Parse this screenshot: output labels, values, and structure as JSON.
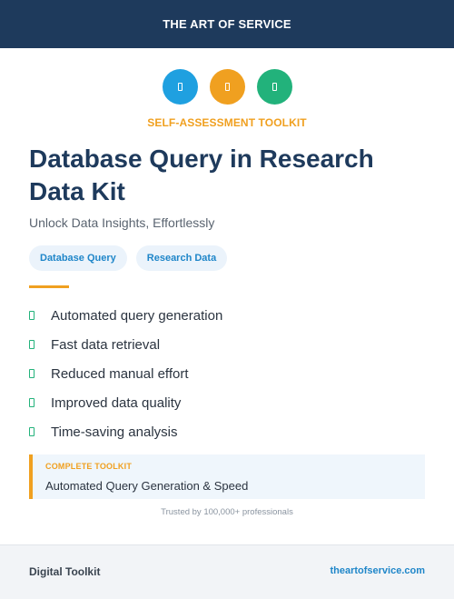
{
  "header": {
    "brand": "THE ART OF SERVICE"
  },
  "icons": [
    {
      "name": "square-icon",
      "color": "#1fa0e0"
    },
    {
      "name": "square-icon",
      "color": "#f0a020"
    },
    {
      "name": "square-icon",
      "color": "#22b27b"
    }
  ],
  "kicker": "SELF-ASSESSMENT TOOLKIT",
  "title": "Database Query in Research Data Kit",
  "subtitle": "Unlock Data Insights, Effortlessly",
  "tags": [
    "Database Query",
    "Research Data"
  ],
  "features": [
    "Automated query generation",
    "Fast data retrieval",
    "Reduced manual effort",
    "Improved data quality",
    "Time-saving analysis"
  ],
  "callout": {
    "label": "COMPLETE TOOLKIT",
    "value": "Automated Query Generation & Speed"
  },
  "trust": "Trusted by 100,000+ professionals",
  "footer": {
    "left": "Digital Toolkit",
    "right": "theartofservice.com"
  },
  "colors": {
    "navy": "#1e3a5c",
    "accent_orange": "#f0a020",
    "accent_blue": "#1f86c9",
    "accent_green": "#23b27b"
  }
}
